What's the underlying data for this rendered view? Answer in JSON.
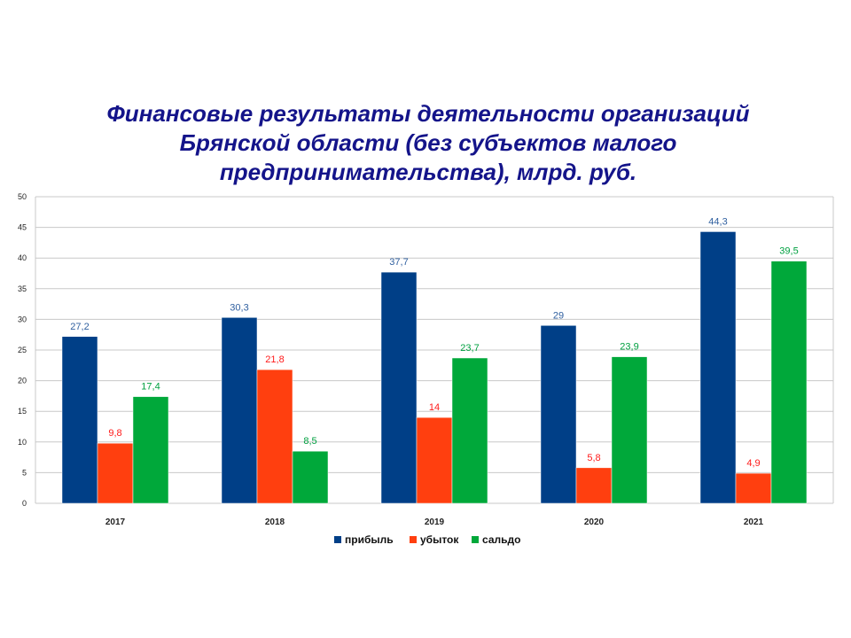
{
  "chart_data": {
    "type": "bar",
    "title": "Финансовые результаты деятельности организаций Брянской области  (без субъектов малого предпринимательства), млрд. руб.",
    "title_lines": [
      "Финансовые результаты деятельности организаций",
      "Брянской области  (без субъектов малого",
      "предпринимательства), млрд. руб."
    ],
    "categories": [
      "2017",
      "2018",
      "2019",
      "2020",
      "2021"
    ],
    "series": [
      {
        "name": "прибыль",
        "values": [
          27.2,
          30.3,
          37.7,
          29,
          44.3
        ],
        "labels": [
          "27,2",
          "30,3",
          "37,7",
          "29",
          "44,3"
        ],
        "color": "#003f87",
        "label_color": "#2f5f9f"
      },
      {
        "name": "убыток",
        "values": [
          9.8,
          21.8,
          14,
          5.8,
          4.9
        ],
        "labels": [
          "9,8",
          "21,8",
          "14",
          "5,8",
          "4,9"
        ],
        "color": "#ff3f0f",
        "label_color": "#ff1a1a"
      },
      {
        "name": "сальдо",
        "values": [
          17.4,
          8.5,
          23.7,
          23.9,
          39.5
        ],
        "labels": [
          "17,4",
          "8,5",
          "23,7",
          "23,9",
          "39,5"
        ],
        "color": "#00a83a",
        "label_color": "#00a040"
      }
    ],
    "xlabel": "",
    "ylabel": "",
    "ylim": [
      0,
      50
    ],
    "yticks": [
      0,
      5,
      10,
      15,
      20,
      25,
      30,
      35,
      40,
      45,
      50
    ],
    "grid": true,
    "legend": "bottom"
  }
}
